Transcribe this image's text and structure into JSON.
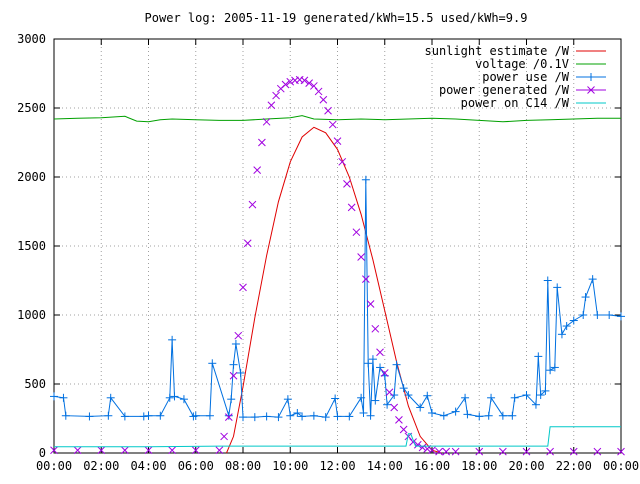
{
  "chart_data": {
    "type": "line",
    "title": "Power log: 2005-11-19 generated/kWh=15.5 used/kWh=9.9",
    "xlabel": "",
    "ylabel": "",
    "xlim": [
      0,
      24
    ],
    "ylim": [
      0,
      3000
    ],
    "grid": true,
    "legend_position": "top-right",
    "x_ticks": [
      {
        "value": 0,
        "label": "00:00"
      },
      {
        "value": 2,
        "label": "02:00"
      },
      {
        "value": 4,
        "label": "04:00"
      },
      {
        "value": 6,
        "label": "06:00"
      },
      {
        "value": 8,
        "label": "08:00"
      },
      {
        "value": 10,
        "label": "10:00"
      },
      {
        "value": 12,
        "label": "12:00"
      },
      {
        "value": 14,
        "label": "14:00"
      },
      {
        "value": 16,
        "label": "16:00"
      },
      {
        "value": 18,
        "label": "18:00"
      },
      {
        "value": 20,
        "label": "20:00"
      },
      {
        "value": 22,
        "label": "22:00"
      },
      {
        "value": 24,
        "label": "00:00"
      }
    ],
    "y_ticks": [
      {
        "value": 0,
        "label": "0"
      },
      {
        "value": 500,
        "label": "500"
      },
      {
        "value": 1000,
        "label": "1000"
      },
      {
        "value": 1500,
        "label": "1500"
      },
      {
        "value": 2000,
        "label": "2000"
      },
      {
        "value": 2500,
        "label": "2500"
      },
      {
        "value": 3000,
        "label": "3000"
      }
    ],
    "series": [
      {
        "name": "sunlight estimate /W",
        "color": "#e00000",
        "style": "line",
        "x": [
          7.3,
          7.6,
          8.0,
          8.5,
          9.0,
          9.5,
          10.0,
          10.5,
          11.0,
          11.5,
          12.0,
          12.5,
          13.0,
          13.5,
          14.0,
          14.5,
          15.0,
          15.5,
          16.0,
          16.4
        ],
        "y": [
          0,
          120,
          480,
          980,
          1430,
          1820,
          2110,
          2290,
          2360,
          2320,
          2200,
          2000,
          1730,
          1400,
          1030,
          660,
          340,
          120,
          20,
          0
        ]
      },
      {
        "name": "voltage /0.1V",
        "color": "#00a000",
        "style": "line",
        "x": [
          0,
          1,
          2,
          3,
          3.5,
          4,
          4.5,
          5,
          6,
          7,
          8,
          9,
          10,
          10.5,
          11,
          12,
          13,
          14,
          15,
          16,
          17,
          18,
          19,
          20,
          21,
          22,
          23,
          24
        ],
        "y": [
          2420,
          2425,
          2430,
          2440,
          2405,
          2400,
          2415,
          2420,
          2415,
          2410,
          2410,
          2420,
          2430,
          2445,
          2420,
          2415,
          2420,
          2415,
          2420,
          2425,
          2420,
          2410,
          2400,
          2410,
          2415,
          2420,
          2425,
          2425
        ]
      },
      {
        "name": "power use /W",
        "color": "#0070e0",
        "style": "linespoints",
        "x": [
          0,
          0.4,
          0.5,
          1.5,
          2.3,
          2.4,
          3.0,
          3.8,
          4.0,
          4.5,
          4.9,
          5.0,
          5.1,
          5.5,
          5.9,
          6.0,
          6.6,
          6.7,
          7.4,
          7.5,
          7.6,
          7.7,
          7.9,
          8.0,
          8.5,
          9.0,
          9.5,
          9.9,
          10.0,
          10.3,
          10.5,
          11.0,
          11.5,
          11.9,
          12.0,
          12.5,
          13.0,
          13.1,
          13.2,
          13.3,
          13.4,
          13.5,
          13.6,
          13.8,
          14.0,
          14.1,
          14.4,
          14.5,
          14.8,
          15.0,
          15.5,
          15.8,
          16.0,
          16.5,
          17.0,
          17.4,
          17.5,
          18.0,
          18.4,
          18.5,
          19.0,
          19.4,
          19.5,
          20.0,
          20.4,
          20.5,
          20.6,
          20.8,
          20.9,
          21.0,
          21.2,
          21.3,
          21.5,
          21.7,
          22.0,
          22.4,
          22.5,
          22.8,
          23.0,
          23.5,
          24.0
        ],
        "y": [
          410,
          400,
          270,
          265,
          270,
          400,
          265,
          265,
          270,
          270,
          400,
          820,
          410,
          390,
          265,
          270,
          270,
          650,
          270,
          390,
          640,
          790,
          580,
          260,
          260,
          265,
          260,
          390,
          270,
          290,
          265,
          270,
          260,
          395,
          265,
          265,
          400,
          290,
          1980,
          650,
          270,
          680,
          380,
          620,
          560,
          350,
          420,
          640,
          470,
          420,
          330,
          415,
          290,
          270,
          300,
          400,
          280,
          265,
          270,
          400,
          270,
          270,
          400,
          420,
          350,
          700,
          420,
          450,
          1250,
          600,
          620,
          1200,
          860,
          920,
          960,
          1000,
          1130,
          1260,
          1000,
          1000,
          990
        ]
      },
      {
        "name": "power generated /W",
        "color": "#a000e0",
        "style": "points",
        "x": [
          0,
          1,
          2,
          3,
          4,
          5,
          6,
          7.0,
          7.2,
          7.4,
          7.6,
          7.8,
          8.0,
          8.2,
          8.4,
          8.6,
          8.8,
          9.0,
          9.2,
          9.4,
          9.6,
          9.8,
          10.0,
          10.2,
          10.4,
          10.6,
          10.8,
          11.0,
          11.2,
          11.4,
          11.6,
          11.8,
          12.0,
          12.2,
          12.4,
          12.6,
          12.8,
          13.0,
          13.2,
          13.4,
          13.6,
          13.8,
          14.0,
          14.2,
          14.4,
          14.6,
          14.8,
          15.0,
          15.2,
          15.4,
          15.6,
          15.8,
          16.0,
          16.3,
          16.6,
          17,
          18,
          19,
          20,
          21,
          22,
          23,
          24
        ],
        "y": [
          20,
          20,
          20,
          20,
          20,
          20,
          20,
          20,
          120,
          260,
          560,
          850,
          1200,
          1520,
          1800,
          2050,
          2250,
          2400,
          2520,
          2590,
          2640,
          2670,
          2690,
          2700,
          2705,
          2700,
          2680,
          2660,
          2620,
          2560,
          2480,
          2380,
          2260,
          2110,
          1950,
          1780,
          1600,
          1420,
          1260,
          1080,
          900,
          730,
          580,
          440,
          330,
          240,
          170,
          120,
          80,
          60,
          40,
          30,
          20,
          10,
          10,
          10,
          10,
          10,
          10,
          10,
          10,
          10,
          10
        ]
      },
      {
        "name": "power on C14 /W",
        "color": "#00c8c8",
        "style": "line",
        "x": [
          0,
          4,
          7,
          10,
          13,
          14.9,
          15.0,
          15.1,
          15.3,
          16,
          18,
          20,
          20.9,
          21.0,
          22,
          24
        ],
        "y": [
          45,
          45,
          50,
          50,
          50,
          50,
          140,
          140,
          50,
          50,
          50,
          50,
          50,
          190,
          190,
          190
        ]
      }
    ]
  }
}
